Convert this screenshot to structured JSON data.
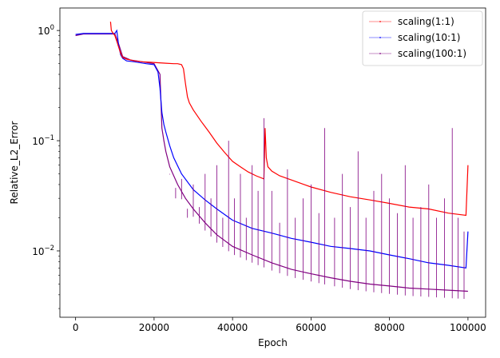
{
  "chart_data": {
    "type": "line",
    "xlabel": "Epoch",
    "ylabel": "Relative_L2_Error",
    "xlim": [
      -4000,
      104500
    ],
    "ylim": [
      0.0025,
      1.6
    ],
    "yscale": "log",
    "grid": false,
    "legend_position": "top-right",
    "xticks": [
      0,
      20000,
      40000,
      60000,
      80000,
      100000
    ],
    "xtick_labels": [
      "0",
      "20000",
      "40000",
      "60000",
      "80000",
      "100000"
    ],
    "yticks": [
      0.01,
      0.1,
      1
    ],
    "ytick_labels": [
      "10",
      "10",
      "10"
    ],
    "ytick_exponents": [
      "−2",
      "−1",
      "0"
    ],
    "series": [
      {
        "name": "scaling(1:1)",
        "color": "#ff0000",
        "x": [
          8900,
          9100,
          9500,
          10000,
          10500,
          11000,
          11500,
          12000,
          13000,
          14000,
          15000,
          17000,
          19000,
          21000,
          23000,
          25000,
          26000,
          27000,
          27500,
          28000,
          28500,
          29000,
          30000,
          32000,
          34000,
          36000,
          38000,
          40000,
          42000,
          44000,
          46000,
          48000,
          48300,
          48600,
          49000,
          50000,
          52000,
          55000,
          60000,
          65000,
          70000,
          75000,
          80000,
          85000,
          90000,
          95000,
          99500,
          100000
        ],
        "y": [
          1.2,
          1.0,
          0.95,
          0.9,
          0.8,
          0.7,
          0.62,
          0.57,
          0.55,
          0.54,
          0.53,
          0.52,
          0.515,
          0.51,
          0.505,
          0.5,
          0.5,
          0.49,
          0.45,
          0.33,
          0.25,
          0.22,
          0.19,
          0.15,
          0.12,
          0.095,
          0.078,
          0.065,
          0.058,
          0.052,
          0.048,
          0.045,
          0.13,
          0.07,
          0.058,
          0.053,
          0.048,
          0.044,
          0.038,
          0.034,
          0.031,
          0.029,
          0.027,
          0.025,
          0.024,
          0.022,
          0.021,
          0.06
        ]
      },
      {
        "name": "scaling(10:1)",
        "color": "#0000ff",
        "x": [
          0,
          2000,
          5000,
          8000,
          10000,
          10500,
          11000,
          11500,
          12000,
          13000,
          15000,
          18000,
          20000,
          21000,
          21500,
          22000,
          22500,
          23000,
          24000,
          25000,
          27000,
          30000,
          33000,
          36000,
          40000,
          45000,
          50000,
          55000,
          60000,
          65000,
          70000,
          75000,
          80000,
          85000,
          90000,
          95000,
          99500,
          100000
        ],
        "y": [
          0.92,
          0.94,
          0.94,
          0.94,
          0.94,
          1.0,
          0.72,
          0.6,
          0.56,
          0.53,
          0.52,
          0.5,
          0.49,
          0.42,
          0.3,
          0.18,
          0.14,
          0.12,
          0.09,
          0.07,
          0.05,
          0.036,
          0.029,
          0.024,
          0.019,
          0.016,
          0.0145,
          0.013,
          0.012,
          0.011,
          0.0105,
          0.01,
          0.0092,
          0.0085,
          0.0078,
          0.0074,
          0.007,
          0.015
        ]
      },
      {
        "name": "scaling(100:1)",
        "color": "#800080",
        "x": [
          0,
          2000,
          5000,
          8000,
          10000,
          11000,
          12000,
          14000,
          17000,
          20000,
          21500,
          22000,
          22500,
          23000,
          24000,
          26000,
          28000,
          30000,
          33000,
          36000,
          40000,
          45000,
          50000,
          55000,
          60000,
          65000,
          70000,
          75000,
          80000,
          85000,
          90000,
          95000,
          100000
        ],
        "y": [
          0.9,
          0.93,
          0.93,
          0.93,
          0.93,
          0.75,
          0.58,
          0.54,
          0.52,
          0.5,
          0.4,
          0.13,
          0.1,
          0.08,
          0.058,
          0.04,
          0.03,
          0.024,
          0.018,
          0.014,
          0.011,
          0.0092,
          0.0078,
          0.0068,
          0.0062,
          0.0057,
          0.0053,
          0.005,
          0.0048,
          0.0046,
          0.0045,
          0.0044,
          0.0043
        ]
      }
    ],
    "spikes": {
      "series_index": 2,
      "x": [
        24000,
        25500,
        27000,
        28500,
        30000,
        31500,
        33000,
        34500,
        36000,
        37500,
        39000,
        40500,
        42000,
        43500,
        45000,
        46500,
        48000,
        50000,
        52000,
        54000,
        56000,
        58000,
        60000,
        62000,
        63500,
        66000,
        68000,
        70000,
        72000,
        74000,
        76000,
        78000,
        80000,
        82000,
        84000,
        86000,
        88000,
        90000,
        92000,
        94000,
        96000,
        97500,
        99000
      ],
      "top": [
        0.05,
        0.03,
        0.045,
        0.02,
        0.04,
        0.025,
        0.05,
        0.03,
        0.06,
        0.02,
        0.1,
        0.03,
        0.05,
        0.02,
        0.06,
        0.035,
        0.16,
        0.035,
        0.018,
        0.055,
        0.02,
        0.03,
        0.04,
        0.022,
        0.13,
        0.02,
        0.05,
        0.025,
        0.08,
        0.02,
        0.035,
        0.05,
        0.03,
        0.022,
        0.06,
        0.02,
        0.025,
        0.04,
        0.02,
        0.03,
        0.13,
        0.02,
        0.015
      ]
    }
  }
}
